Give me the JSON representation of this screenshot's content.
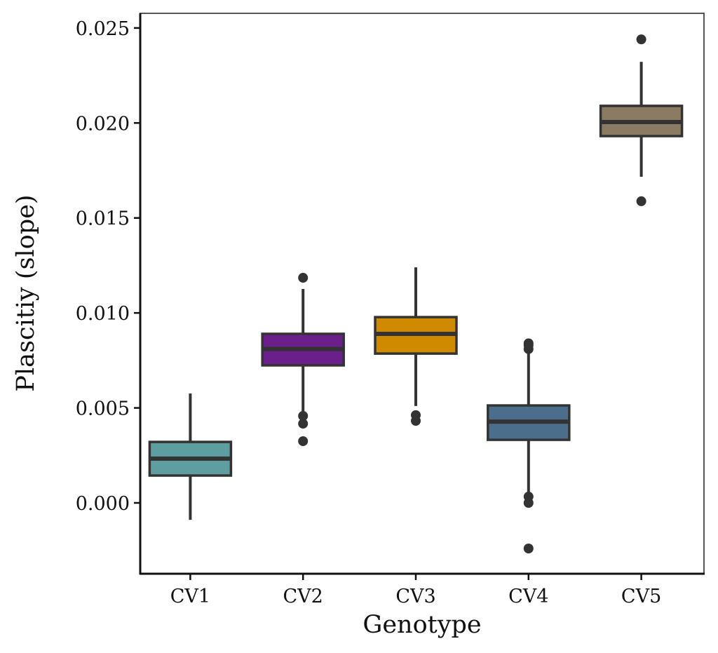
{
  "chart_data": {
    "type": "box",
    "title": "",
    "xlabel": "Genotype",
    "ylabel": "Plascitiy (slope)",
    "ylim": [
      -0.0037,
      0.0258
    ],
    "yticks": [
      0.0,
      0.005,
      0.01,
      0.015,
      0.02,
      0.025
    ],
    "ytick_labels": [
      "0.000",
      "0.005",
      "0.010",
      "0.015",
      "0.020",
      "0.025"
    ],
    "categories": [
      "CV1",
      "CV2",
      "CV3",
      "CV4",
      "CV5"
    ],
    "grid": false,
    "legend": "none",
    "box_edge_color": "#333333",
    "outlier_color": "#333333",
    "series": [
      {
        "name": "CV1",
        "color": "#5e9ea0",
        "whisker_low": -0.00089,
        "q1": 0.00144,
        "median": 0.00233,
        "q3": 0.00321,
        "whisker_high": 0.00576,
        "outliers": []
      },
      {
        "name": "CV2",
        "color": "#6a1f8a",
        "whisker_low": 0.00476,
        "q1": 0.00724,
        "median": 0.0081,
        "q3": 0.0089,
        "whisker_high": 0.01126,
        "outliers": [
          0.01185,
          0.00458,
          0.00417,
          0.00325
        ]
      },
      {
        "name": "CV3",
        "color": "#d08a00",
        "whisker_low": 0.0051,
        "q1": 0.00786,
        "median": 0.0089,
        "q3": 0.00978,
        "whisker_high": 0.0124,
        "outliers": [
          0.00462,
          0.00432
        ]
      },
      {
        "name": "CV4",
        "color": "#4a6e8c",
        "whisker_low": 0.00052,
        "q1": 0.00332,
        "median": 0.00428,
        "q3": 0.00513,
        "whisker_high": 0.0079,
        "outliers": [
          0.0084,
          0.0083,
          0.0081,
          0.00033,
          0.0,
          -0.0024
        ]
      },
      {
        "name": "CV5",
        "color": "#8b7b63",
        "whisker_low": 0.01717,
        "q1": 0.01931,
        "median": 0.02005,
        "q3": 0.0209,
        "whisker_high": 0.02322,
        "outliers": [
          0.0244,
          0.01588
        ]
      }
    ]
  }
}
